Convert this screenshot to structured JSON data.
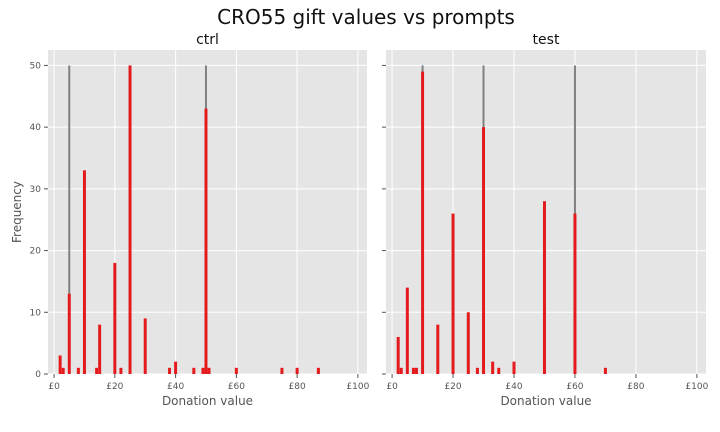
{
  "figure": {
    "title": "CRO55 gift values vs prompts"
  },
  "style": {
    "background": "#E5E5E5",
    "grid": "#FFFFFF",
    "bar_color": "#E41A1C",
    "prompt_line_color": "#808080",
    "text_color": "#555555",
    "title_color": "#111111"
  },
  "chart_data": [
    {
      "type": "bar",
      "title": "ctrl",
      "xlabel": "Donation value",
      "ylabel": "Frequency",
      "xlim": [
        -2,
        103
      ],
      "ylim": [
        0,
        52.5
      ],
      "x_ticks": [
        0,
        20,
        40,
        60,
        80,
        100
      ],
      "x_tick_labels": [
        "£0",
        "£20",
        "£40",
        "£60",
        "£80",
        "£100"
      ],
      "y_ticks": [
        0,
        10,
        20,
        30,
        40,
        50
      ],
      "y_tick_labels": [
        "0",
        "10",
        "20",
        "30",
        "40",
        "50"
      ],
      "grid": true,
      "bin_width": 0.98,
      "prompt_lines": [
        {
          "x": 5,
          "height": 50
        },
        {
          "x": 25,
          "height": 50
        },
        {
          "x": 50,
          "height": 50
        }
      ],
      "bins": [
        {
          "x": 2,
          "value": 3
        },
        {
          "x": 3,
          "value": 1
        },
        {
          "x": 5,
          "value": 13
        },
        {
          "x": 8,
          "value": 1
        },
        {
          "x": 10,
          "value": 33
        },
        {
          "x": 14,
          "value": 1
        },
        {
          "x": 15,
          "value": 8
        },
        {
          "x": 20,
          "value": 18
        },
        {
          "x": 22,
          "value": 1
        },
        {
          "x": 25,
          "value": 50
        },
        {
          "x": 30,
          "value": 9
        },
        {
          "x": 38,
          "value": 1
        },
        {
          "x": 40,
          "value": 2
        },
        {
          "x": 46,
          "value": 1
        },
        {
          "x": 49,
          "value": 1
        },
        {
          "x": 50,
          "value": 43
        },
        {
          "x": 51,
          "value": 1
        },
        {
          "x": 60,
          "value": 1
        },
        {
          "x": 75,
          "value": 1
        },
        {
          "x": 80,
          "value": 1
        },
        {
          "x": 87,
          "value": 1
        }
      ]
    },
    {
      "type": "bar",
      "title": "test",
      "xlabel": "Donation value",
      "ylabel": "",
      "xlim": [
        -2,
        103
      ],
      "ylim": [
        0,
        52.5
      ],
      "x_ticks": [
        0,
        20,
        40,
        60,
        80,
        100
      ],
      "x_tick_labels": [
        "£0",
        "£20",
        "£40",
        "£60",
        "£80",
        "£100"
      ],
      "y_ticks": [
        0,
        10,
        20,
        30,
        40,
        50
      ],
      "y_tick_labels": [],
      "grid": true,
      "bin_width": 0.98,
      "prompt_lines": [
        {
          "x": 10,
          "height": 50
        },
        {
          "x": 30,
          "height": 50
        },
        {
          "x": 60,
          "height": 50
        }
      ],
      "bins": [
        {
          "x": 2,
          "value": 6
        },
        {
          "x": 3,
          "value": 1
        },
        {
          "x": 5,
          "value": 14
        },
        {
          "x": 7,
          "value": 1
        },
        {
          "x": 8,
          "value": 1
        },
        {
          "x": 10,
          "value": 49
        },
        {
          "x": 15,
          "value": 8
        },
        {
          "x": 20,
          "value": 26
        },
        {
          "x": 25,
          "value": 10
        },
        {
          "x": 28,
          "value": 1
        },
        {
          "x": 30,
          "value": 40
        },
        {
          "x": 33,
          "value": 2
        },
        {
          "x": 35,
          "value": 1
        },
        {
          "x": 40,
          "value": 2
        },
        {
          "x": 50,
          "value": 28
        },
        {
          "x": 60,
          "value": 26
        },
        {
          "x": 70,
          "value": 1
        }
      ]
    }
  ]
}
